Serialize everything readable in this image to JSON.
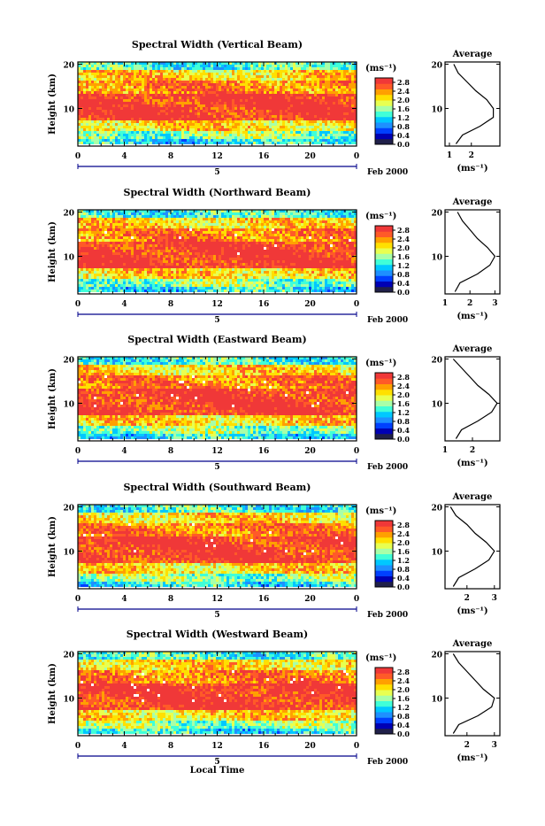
{
  "colors": {
    "colormap": [
      "#20204a",
      "#0000b4",
      "#0040ff",
      "#1e90ff",
      "#00c8ff",
      "#40ffd8",
      "#a8ffa8",
      "#e8ff50",
      "#ffe000",
      "#ffa000",
      "#ff5a28",
      "#f03838"
    ],
    "line": "#000000"
  },
  "figure": {
    "x_axis_label": "Local Time",
    "y_axis_label": "Height (km)",
    "date_label": "Feb 2000",
    "day_label": "5",
    "avg_title": "Average",
    "cb_unit": "(ms⁻¹)"
  },
  "chart_data": [
    {
      "type": "heatmap",
      "title": "Spectral Width (Vertical Beam)",
      "xlabel": "",
      "ylabel": "Height (km)",
      "xticks": [
        "0",
        "4",
        "8",
        "12",
        "16",
        "20",
        "0"
      ],
      "xlim": [
        0,
        24
      ],
      "yticks": [
        "10",
        "20"
      ],
      "ylim": [
        1.5,
        20.5
      ],
      "colorbar": {
        "unit": "(ms⁻¹)",
        "ticks": [
          "0.0",
          "0.4",
          "0.8",
          "1.2",
          "1.6",
          "2.0",
          "2.4",
          "2.8"
        ],
        "range": [
          0,
          3.0
        ]
      },
      "profile": {
        "title": "Average",
        "xlabel": "(ms⁻¹)",
        "xticks": [
          "1",
          "2"
        ],
        "xlim": [
          0.8,
          3.3
        ],
        "y": [
          2,
          4,
          6,
          8,
          10,
          12,
          14,
          16,
          18,
          20
        ],
        "x": [
          1.3,
          1.6,
          2.4,
          3.0,
          3.0,
          2.7,
          2.2,
          1.8,
          1.4,
          1.2
        ]
      }
    },
    {
      "type": "heatmap",
      "title": "Spectral Width (Northward Beam)",
      "xlabel": "",
      "ylabel": "Height (km)",
      "xticks": [
        "0",
        "4",
        "8",
        "12",
        "16",
        "20",
        "0"
      ],
      "xlim": [
        0,
        24
      ],
      "yticks": [
        "10",
        "20"
      ],
      "ylim": [
        1.5,
        20.5
      ],
      "colorbar": {
        "unit": "(ms⁻¹)",
        "ticks": [
          "0.0",
          "0.4",
          "0.8",
          "1.2",
          "1.6",
          "2.0",
          "2.4",
          "2.8"
        ],
        "range": [
          0,
          3.0
        ]
      },
      "profile": {
        "title": "Average",
        "xlabel": "(ms⁻¹)",
        "xticks": [
          "1",
          "2",
          "3"
        ],
        "xlim": [
          1.0,
          3.2
        ],
        "y": [
          2,
          4,
          6,
          8,
          10,
          12,
          14,
          16,
          18,
          20
        ],
        "x": [
          1.4,
          1.6,
          2.3,
          2.8,
          3.0,
          2.7,
          2.3,
          2.0,
          1.7,
          1.5
        ]
      }
    },
    {
      "type": "heatmap",
      "title": "Spectral Width (Eastward Beam)",
      "xlabel": "",
      "ylabel": "Height (km)",
      "xticks": [
        "0",
        "4",
        "8",
        "12",
        "16",
        "20",
        "0"
      ],
      "xlim": [
        0,
        24
      ],
      "yticks": [
        "10",
        "20"
      ],
      "ylim": [
        1.5,
        20.5
      ],
      "colorbar": {
        "unit": "(ms⁻¹)",
        "ticks": [
          "0.0",
          "0.4",
          "0.8",
          "1.2",
          "1.6",
          "2.0",
          "2.4",
          "2.8"
        ],
        "range": [
          0,
          3.0
        ]
      },
      "profile": {
        "title": "Average",
        "xlabel": "(ms⁻¹)",
        "xticks": [
          "1",
          "2"
        ],
        "xlim": [
          1.0,
          3.0
        ],
        "y": [
          2,
          4,
          6,
          8,
          10,
          12,
          14,
          16,
          18,
          20
        ],
        "x": [
          1.4,
          1.6,
          2.2,
          2.7,
          2.9,
          2.6,
          2.2,
          1.9,
          1.6,
          1.3
        ]
      }
    },
    {
      "type": "heatmap",
      "title": "Spectral Width (Southward Beam)",
      "xlabel": "",
      "ylabel": "Height (km)",
      "xticks": [
        "0",
        "4",
        "8",
        "12",
        "16",
        "20",
        "0"
      ],
      "xlim": [
        0,
        24
      ],
      "yticks": [
        "10",
        "20"
      ],
      "ylim": [
        1.5,
        20.5
      ],
      "colorbar": {
        "unit": "(ms⁻¹)",
        "ticks": [
          "0.0",
          "0.4",
          "0.8",
          "1.2",
          "1.6",
          "2.0",
          "2.4",
          "2.8"
        ],
        "range": [
          0,
          3.0
        ]
      },
      "profile": {
        "title": "Average",
        "xlabel": "(ms⁻¹)",
        "xticks": [
          "2",
          "3"
        ],
        "xlim": [
          1.2,
          3.2
        ],
        "y": [
          2,
          4,
          6,
          8,
          10,
          12,
          14,
          16,
          18,
          20
        ],
        "x": [
          1.5,
          1.7,
          2.3,
          2.8,
          3.0,
          2.7,
          2.3,
          2.0,
          1.6,
          1.4
        ]
      }
    },
    {
      "type": "heatmap",
      "title": "Spectral Width (Westward Beam)",
      "xlabel": "Local Time",
      "ylabel": "Height (km)",
      "xticks": [
        "0",
        "4",
        "8",
        "12",
        "16",
        "20",
        "0"
      ],
      "xlim": [
        0,
        24
      ],
      "yticks": [
        "10",
        "20"
      ],
      "ylim": [
        1.5,
        20.5
      ],
      "colorbar": {
        "unit": "(ms⁻¹)",
        "ticks": [
          "0.0",
          "0.4",
          "0.8",
          "1.2",
          "1.6",
          "2.0",
          "2.4",
          "2.8"
        ],
        "range": [
          0,
          3.0
        ]
      },
      "profile": {
        "title": "Average",
        "xlabel": "(ms⁻¹)",
        "xticks": [
          "2",
          "3"
        ],
        "xlim": [
          1.2,
          3.2
        ],
        "y": [
          2,
          4,
          6,
          8,
          10,
          12,
          14,
          16,
          18,
          20
        ],
        "x": [
          1.5,
          1.7,
          2.4,
          2.9,
          3.0,
          2.6,
          2.3,
          2.0,
          1.7,
          1.5
        ]
      }
    }
  ]
}
